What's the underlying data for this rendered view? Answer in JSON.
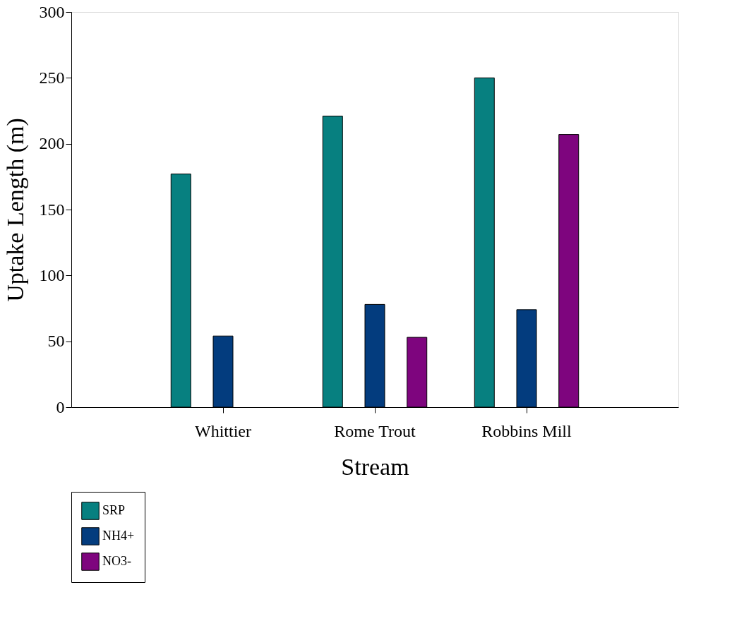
{
  "chart_data": {
    "type": "bar",
    "xlabel": "Stream",
    "ylabel": "Uptake Length (m)",
    "categories": [
      "Whittier",
      "Rome Trout",
      "Robbins Mill"
    ],
    "series": [
      {
        "name": "SRP",
        "color": "#078080",
        "values": [
          177,
          221,
          250
        ]
      },
      {
        "name": "NH4+",
        "color": "#033c7e",
        "values": [
          54,
          78,
          74
        ]
      },
      {
        "name": "NO3-",
        "color": "#7e057e",
        "values": [
          null,
          53,
          207
        ]
      }
    ],
    "ylim": [
      0,
      300
    ],
    "yticks": [
      0,
      50,
      100,
      150,
      200,
      250,
      300
    ],
    "grid": false,
    "legend": "bottom left"
  }
}
